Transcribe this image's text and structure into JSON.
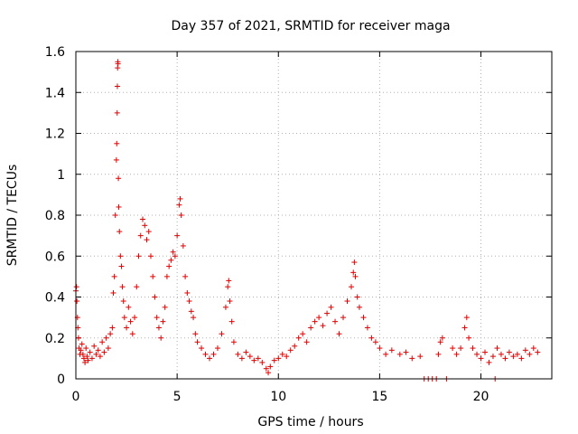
{
  "chart_data": {
    "type": "scatter",
    "title": "Day 357 of 2021, SRMTID for receiver maga",
    "xlabel": "GPS time / hours",
    "ylabel": "SRMTID / TECUs",
    "xlim": [
      0,
      23.5
    ],
    "ylim": [
      0,
      1.6
    ],
    "xticks": [
      0,
      5,
      10,
      15,
      20
    ],
    "yticks": [
      0,
      0.2,
      0.4,
      0.6,
      0.8,
      1,
      1.2,
      1.4,
      1.6
    ],
    "xtick_labels": [
      "0",
      "5",
      "10",
      "15",
      "20"
    ],
    "ytick_labels": [
      "0",
      "0.2",
      "0.4",
      "0.6",
      "0.8",
      "1",
      "1.2",
      "1.4",
      "1.6"
    ],
    "grid": true,
    "legend": "none",
    "marker": "plus",
    "color": "#e00000",
    "series": [
      {
        "name": "SRMTID",
        "points": [
          [
            0.0,
            0.43
          ],
          [
            0.03,
            0.45
          ],
          [
            0.05,
            0.38
          ],
          [
            0.08,
            0.3
          ],
          [
            0.1,
            0.25
          ],
          [
            0.13,
            0.2
          ],
          [
            0.16,
            0.15
          ],
          [
            0.2,
            0.12
          ],
          [
            0.25,
            0.14
          ],
          [
            0.3,
            0.17
          ],
          [
            0.35,
            0.12
          ],
          [
            0.4,
            0.1
          ],
          [
            0.45,
            0.08
          ],
          [
            0.5,
            0.15
          ],
          [
            0.55,
            0.11
          ],
          [
            0.6,
            0.09
          ],
          [
            0.7,
            0.13
          ],
          [
            0.8,
            0.1
          ],
          [
            0.9,
            0.16
          ],
          [
            1.0,
            0.12
          ],
          [
            1.1,
            0.14
          ],
          [
            1.2,
            0.11
          ],
          [
            1.3,
            0.18
          ],
          [
            1.4,
            0.13
          ],
          [
            1.5,
            0.2
          ],
          [
            1.6,
            0.15
          ],
          [
            1.7,
            0.22
          ],
          [
            1.8,
            0.25
          ],
          [
            1.85,
            0.42
          ],
          [
            1.9,
            0.5
          ],
          [
            1.95,
            0.8
          ],
          [
            2.0,
            1.07
          ],
          [
            2.02,
            1.15
          ],
          [
            2.04,
            1.3
          ],
          [
            2.05,
            1.43
          ],
          [
            2.06,
            1.52
          ],
          [
            2.07,
            1.55
          ],
          [
            2.08,
            1.54
          ],
          [
            2.1,
            0.98
          ],
          [
            2.12,
            0.84
          ],
          [
            2.15,
            0.72
          ],
          [
            2.2,
            0.6
          ],
          [
            2.25,
            0.55
          ],
          [
            2.3,
            0.45
          ],
          [
            2.35,
            0.38
          ],
          [
            2.4,
            0.3
          ],
          [
            2.5,
            0.25
          ],
          [
            2.6,
            0.35
          ],
          [
            2.7,
            0.28
          ],
          [
            2.8,
            0.22
          ],
          [
            2.9,
            0.3
          ],
          [
            3.0,
            0.45
          ],
          [
            3.1,
            0.6
          ],
          [
            3.2,
            0.7
          ],
          [
            3.3,
            0.78
          ],
          [
            3.4,
            0.75
          ],
          [
            3.5,
            0.68
          ],
          [
            3.6,
            0.72
          ],
          [
            3.7,
            0.6
          ],
          [
            3.8,
            0.5
          ],
          [
            3.9,
            0.4
          ],
          [
            4.0,
            0.3
          ],
          [
            4.1,
            0.25
          ],
          [
            4.2,
            0.2
          ],
          [
            4.3,
            0.28
          ],
          [
            4.4,
            0.35
          ],
          [
            4.5,
            0.5
          ],
          [
            4.6,
            0.55
          ],
          [
            4.7,
            0.58
          ],
          [
            4.8,
            0.62
          ],
          [
            4.9,
            0.6
          ],
          [
            5.0,
            0.7
          ],
          [
            5.1,
            0.85
          ],
          [
            5.15,
            0.88
          ],
          [
            5.2,
            0.8
          ],
          [
            5.3,
            0.65
          ],
          [
            5.4,
            0.5
          ],
          [
            5.5,
            0.42
          ],
          [
            5.6,
            0.38
          ],
          [
            5.7,
            0.33
          ],
          [
            5.8,
            0.3
          ],
          [
            5.9,
            0.22
          ],
          [
            6.0,
            0.18
          ],
          [
            6.2,
            0.15
          ],
          [
            6.4,
            0.12
          ],
          [
            6.6,
            0.1
          ],
          [
            6.8,
            0.12
          ],
          [
            7.0,
            0.15
          ],
          [
            7.2,
            0.22
          ],
          [
            7.4,
            0.35
          ],
          [
            7.5,
            0.45
          ],
          [
            7.55,
            0.48
          ],
          [
            7.6,
            0.38
          ],
          [
            7.7,
            0.28
          ],
          [
            7.8,
            0.18
          ],
          [
            8.0,
            0.12
          ],
          [
            8.2,
            0.1
          ],
          [
            8.4,
            0.13
          ],
          [
            8.6,
            0.11
          ],
          [
            8.8,
            0.09
          ],
          [
            9.0,
            0.1
          ],
          [
            9.2,
            0.08
          ],
          [
            9.4,
            0.05
          ],
          [
            9.5,
            0.03
          ],
          [
            9.6,
            0.06
          ],
          [
            9.8,
            0.09
          ],
          [
            10.0,
            0.1
          ],
          [
            10.2,
            0.12
          ],
          [
            10.4,
            0.11
          ],
          [
            10.6,
            0.14
          ],
          [
            10.8,
            0.16
          ],
          [
            11.0,
            0.2
          ],
          [
            11.2,
            0.22
          ],
          [
            11.4,
            0.18
          ],
          [
            11.6,
            0.25
          ],
          [
            11.8,
            0.28
          ],
          [
            12.0,
            0.3
          ],
          [
            12.2,
            0.26
          ],
          [
            12.4,
            0.32
          ],
          [
            12.6,
            0.35
          ],
          [
            12.8,
            0.28
          ],
          [
            13.0,
            0.22
          ],
          [
            13.2,
            0.3
          ],
          [
            13.4,
            0.38
          ],
          [
            13.6,
            0.45
          ],
          [
            13.7,
            0.52
          ],
          [
            13.75,
            0.57
          ],
          [
            13.8,
            0.5
          ],
          [
            13.9,
            0.4
          ],
          [
            14.0,
            0.35
          ],
          [
            14.2,
            0.3
          ],
          [
            14.4,
            0.25
          ],
          [
            14.6,
            0.2
          ],
          [
            14.8,
            0.18
          ],
          [
            15.0,
            0.15
          ],
          [
            15.3,
            0.12
          ],
          [
            15.6,
            0.14
          ],
          [
            16.0,
            0.12
          ],
          [
            16.3,
            0.13
          ],
          [
            16.6,
            0.1
          ],
          [
            17.0,
            0.11
          ],
          [
            17.2,
            0.0
          ],
          [
            17.4,
            0.0
          ],
          [
            17.6,
            0.0
          ],
          [
            17.8,
            0.0
          ],
          [
            17.9,
            0.12
          ],
          [
            18.0,
            0.18
          ],
          [
            18.1,
            0.2
          ],
          [
            18.3,
            0.0
          ],
          [
            18.6,
            0.15
          ],
          [
            18.8,
            0.12
          ],
          [
            19.0,
            0.15
          ],
          [
            19.2,
            0.25
          ],
          [
            19.3,
            0.3
          ],
          [
            19.4,
            0.2
          ],
          [
            19.6,
            0.15
          ],
          [
            19.8,
            0.12
          ],
          [
            20.0,
            0.1
          ],
          [
            20.2,
            0.13
          ],
          [
            20.4,
            0.08
          ],
          [
            20.6,
            0.11
          ],
          [
            20.7,
            0.0
          ],
          [
            20.8,
            0.15
          ],
          [
            21.0,
            0.12
          ],
          [
            21.2,
            0.1
          ],
          [
            21.4,
            0.13
          ],
          [
            21.6,
            0.11
          ],
          [
            21.8,
            0.12
          ],
          [
            22.0,
            0.1
          ],
          [
            22.2,
            0.14
          ],
          [
            22.4,
            0.12
          ],
          [
            22.6,
            0.15
          ],
          [
            22.8,
            0.13
          ]
        ]
      }
    ]
  }
}
